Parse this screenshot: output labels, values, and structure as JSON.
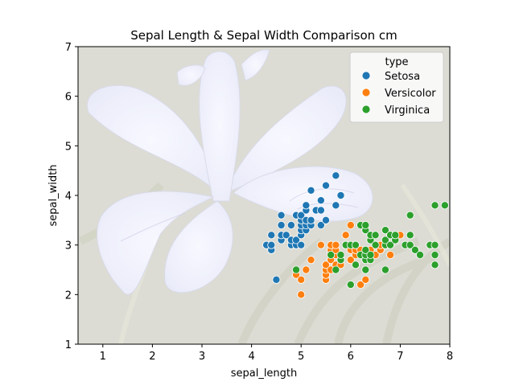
{
  "chart_data": {
    "type": "scatter",
    "title": "Sepal Length & Sepal Width Comparison cm",
    "xlabel": "sepal_length",
    "ylabel": "sepal_width",
    "xlim": [
      0.5,
      8
    ],
    "ylim": [
      1,
      7
    ],
    "xticks": [
      1,
      2,
      3,
      4,
      5,
      6,
      7,
      8
    ],
    "yticks": [
      1,
      2,
      3,
      4,
      5,
      6,
      7
    ],
    "grid": false,
    "legend": {
      "title": "type",
      "placement": "top-right",
      "entries": [
        "Setosa",
        "Versicolor",
        "Virginica"
      ]
    },
    "background": "photo of a pale blue-violet iris flower over green grass, faded",
    "colors": {
      "Setosa": "#1f77b4",
      "Versicolor": "#ff7f0e",
      "Virginica": "#2ca02c"
    },
    "series": [
      {
        "name": "Setosa",
        "points": [
          [
            4.3,
            3.0
          ],
          [
            4.4,
            2.9
          ],
          [
            4.4,
            3.0
          ],
          [
            4.4,
            3.2
          ],
          [
            4.5,
            2.3
          ],
          [
            4.6,
            3.1
          ],
          [
            4.6,
            3.2
          ],
          [
            4.6,
            3.4
          ],
          [
            4.6,
            3.6
          ],
          [
            4.7,
            3.2
          ],
          [
            4.8,
            3.0
          ],
          [
            4.8,
            3.1
          ],
          [
            4.8,
            3.4
          ],
          [
            4.9,
            3.0
          ],
          [
            4.9,
            3.1
          ],
          [
            4.9,
            3.6
          ],
          [
            5.0,
            3.0
          ],
          [
            5.0,
            3.2
          ],
          [
            5.0,
            3.3
          ],
          [
            5.0,
            3.4
          ],
          [
            5.0,
            3.5
          ],
          [
            5.0,
            3.6
          ],
          [
            5.1,
            3.3
          ],
          [
            5.1,
            3.4
          ],
          [
            5.1,
            3.5
          ],
          [
            5.1,
            3.7
          ],
          [
            5.1,
            3.8
          ],
          [
            5.2,
            3.4
          ],
          [
            5.2,
            3.5
          ],
          [
            5.2,
            4.1
          ],
          [
            5.3,
            3.7
          ],
          [
            5.4,
            3.4
          ],
          [
            5.4,
            3.7
          ],
          [
            5.4,
            3.9
          ],
          [
            5.5,
            3.5
          ],
          [
            5.5,
            4.2
          ],
          [
            5.7,
            3.8
          ],
          [
            5.7,
            4.4
          ],
          [
            5.8,
            4.0
          ]
        ]
      },
      {
        "name": "Versicolor",
        "points": [
          [
            4.9,
            2.4
          ],
          [
            5.0,
            2.0
          ],
          [
            5.0,
            2.3
          ],
          [
            5.1,
            2.5
          ],
          [
            5.2,
            2.7
          ],
          [
            5.4,
            3.0
          ],
          [
            5.5,
            2.3
          ],
          [
            5.5,
            2.4
          ],
          [
            5.5,
            2.5
          ],
          [
            5.5,
            2.6
          ],
          [
            5.6,
            2.5
          ],
          [
            5.6,
            2.7
          ],
          [
            5.6,
            2.9
          ],
          [
            5.6,
            3.0
          ],
          [
            5.7,
            2.6
          ],
          [
            5.7,
            2.8
          ],
          [
            5.7,
            2.9
          ],
          [
            5.7,
            3.0
          ],
          [
            5.8,
            2.6
          ],
          [
            5.8,
            2.7
          ],
          [
            5.9,
            3.0
          ],
          [
            5.9,
            3.2
          ],
          [
            6.0,
            2.2
          ],
          [
            6.0,
            2.7
          ],
          [
            6.0,
            2.9
          ],
          [
            6.0,
            3.4
          ],
          [
            6.1,
            2.8
          ],
          [
            6.1,
            2.9
          ],
          [
            6.1,
            3.0
          ],
          [
            6.2,
            2.2
          ],
          [
            6.2,
            2.9
          ],
          [
            6.3,
            2.3
          ],
          [
            6.3,
            2.5
          ],
          [
            6.3,
            3.3
          ],
          [
            6.4,
            2.9
          ],
          [
            6.4,
            3.2
          ],
          [
            6.5,
            2.8
          ],
          [
            6.6,
            2.9
          ],
          [
            6.6,
            3.0
          ],
          [
            6.7,
            3.0
          ],
          [
            6.7,
            3.1
          ],
          [
            6.8,
            2.8
          ],
          [
            6.9,
            3.1
          ],
          [
            7.0,
            3.2
          ]
        ]
      },
      {
        "name": "Virginica",
        "points": [
          [
            4.9,
            2.5
          ],
          [
            5.6,
            2.8
          ],
          [
            5.7,
            2.5
          ],
          [
            5.8,
            2.7
          ],
          [
            5.8,
            2.8
          ],
          [
            5.9,
            3.0
          ],
          [
            6.0,
            2.2
          ],
          [
            6.0,
            3.0
          ],
          [
            6.1,
            2.6
          ],
          [
            6.1,
            3.0
          ],
          [
            6.2,
            2.8
          ],
          [
            6.2,
            3.4
          ],
          [
            6.3,
            2.5
          ],
          [
            6.3,
            2.7
          ],
          [
            6.3,
            2.8
          ],
          [
            6.3,
            2.9
          ],
          [
            6.3,
            3.3
          ],
          [
            6.3,
            3.4
          ],
          [
            6.4,
            2.7
          ],
          [
            6.4,
            2.8
          ],
          [
            6.4,
            3.1
          ],
          [
            6.4,
            3.2
          ],
          [
            6.5,
            3.0
          ],
          [
            6.5,
            3.2
          ],
          [
            6.7,
            2.5
          ],
          [
            6.7,
            3.0
          ],
          [
            6.7,
            3.1
          ],
          [
            6.7,
            3.3
          ],
          [
            6.8,
            3.0
          ],
          [
            6.8,
            3.2
          ],
          [
            6.9,
            3.1
          ],
          [
            6.9,
            3.2
          ],
          [
            7.1,
            3.0
          ],
          [
            7.2,
            3.0
          ],
          [
            7.2,
            3.2
          ],
          [
            7.2,
            3.6
          ],
          [
            7.3,
            2.9
          ],
          [
            7.4,
            2.8
          ],
          [
            7.6,
            3.0
          ],
          [
            7.7,
            2.6
          ],
          [
            7.7,
            2.8
          ],
          [
            7.7,
            3.0
          ],
          [
            7.7,
            3.8
          ],
          [
            7.9,
            3.8
          ]
        ]
      }
    ]
  }
}
